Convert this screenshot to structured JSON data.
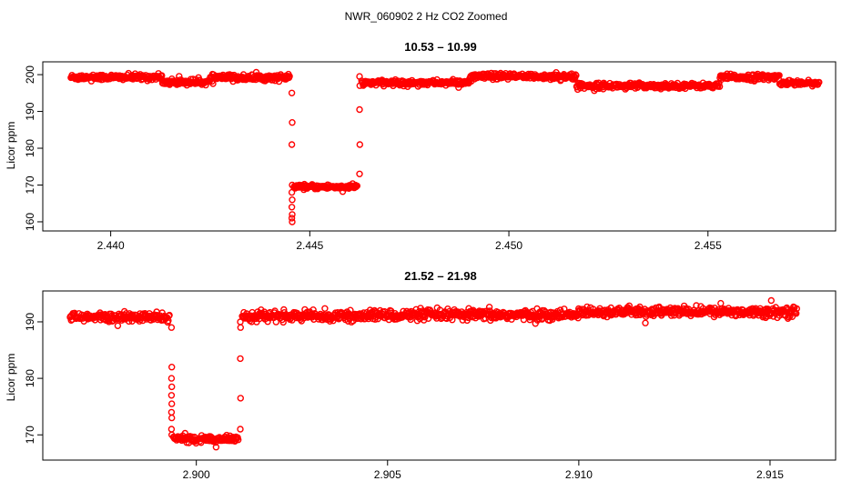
{
  "figure": {
    "suptitle": "NWR_060902  2 Hz CO2 Zoomed"
  },
  "chart_data": [
    {
      "type": "scatter",
      "title": "10.53 – 10.99",
      "xlabel": "",
      "ylabel": "Licor ppm",
      "xlim": [
        2.4385,
        2.458
      ],
      "ylim": [
        159,
        202
      ],
      "xticks": [
        2.44,
        2.445,
        2.45,
        2.455
      ],
      "xtick_labels": [
        "2.440",
        "2.445",
        "2.450",
        "2.455"
      ],
      "yticks": [
        160,
        170,
        180,
        190,
        200
      ],
      "ytick_labels": [
        "160",
        "170",
        "180",
        "190",
        "200"
      ],
      "color": "#ff0000",
      "marker": "open-circle",
      "segments": [
        {
          "x_start": 2.439,
          "x_end": 2.4413,
          "level": 199.3,
          "noise": 0.8
        },
        {
          "x_start": 2.4413,
          "x_end": 2.4425,
          "level": 198.0,
          "noise": 0.8
        },
        {
          "x_start": 2.4425,
          "x_end": 2.4445,
          "level": 199.2,
          "noise": 0.8
        },
        {
          "x_start": 2.4446,
          "x_end": 2.4462,
          "level": 169.5,
          "noise": 0.6
        },
        {
          "x_start": 2.4463,
          "x_end": 2.449,
          "level": 197.8,
          "noise": 0.7
        },
        {
          "x_start": 2.449,
          "x_end": 2.4517,
          "level": 199.5,
          "noise": 0.8
        },
        {
          "x_start": 2.4517,
          "x_end": 2.4553,
          "level": 197.0,
          "noise": 0.7
        },
        {
          "x_start": 2.4553,
          "x_end": 2.4568,
          "level": 199.3,
          "noise": 0.8
        },
        {
          "x_start": 2.4568,
          "x_end": 2.4578,
          "level": 197.8,
          "noise": 0.6
        }
      ],
      "transitions": [
        {
          "x": 2.44455,
          "values": [
            195,
            187,
            181,
            170,
            168,
            166,
            164,
            162,
            161,
            160
          ]
        },
        {
          "x": 2.44625,
          "values": [
            173,
            181,
            190.5,
            197,
            199.5
          ]
        }
      ]
    },
    {
      "type": "scatter",
      "title": "21.52 – 21.98",
      "xlabel": "",
      "ylabel": "Licor ppm",
      "xlim": [
        2.8962,
        2.9165
      ],
      "ylim": [
        166.5,
        194.5
      ],
      "xticks": [
        2.9,
        2.905,
        2.91,
        2.915
      ],
      "xtick_labels": [
        "2.900",
        "2.905",
        "2.910",
        "2.915"
      ],
      "yticks": [
        170,
        180,
        190
      ],
      "ytick_labels": [
        "170",
        "180",
        "190"
      ],
      "color": "#ff0000",
      "marker": "open-circle",
      "segments": [
        {
          "x_start": 2.8967,
          "x_end": 2.8993,
          "level": 190.8,
          "noise": 0.8
        },
        {
          "x_start": 2.8994,
          "x_end": 2.9011,
          "level": 169.3,
          "noise": 0.6
        },
        {
          "x_start": 2.9012,
          "x_end": 2.9045,
          "level": 191.0,
          "noise": 0.8
        },
        {
          "x_start": 2.9045,
          "x_end": 2.91,
          "level": 191.2,
          "noise": 0.9
        },
        {
          "x_start": 2.91,
          "x_end": 2.9157,
          "level": 191.8,
          "noise": 0.8
        }
      ],
      "transitions": [
        {
          "x": 2.89935,
          "values": [
            189,
            182,
            180,
            178.5,
            177,
            175.5,
            174,
            173,
            171,
            170
          ]
        },
        {
          "x": 2.90115,
          "values": [
            171,
            176.5,
            183.5,
            189,
            190
          ]
        }
      ]
    }
  ]
}
